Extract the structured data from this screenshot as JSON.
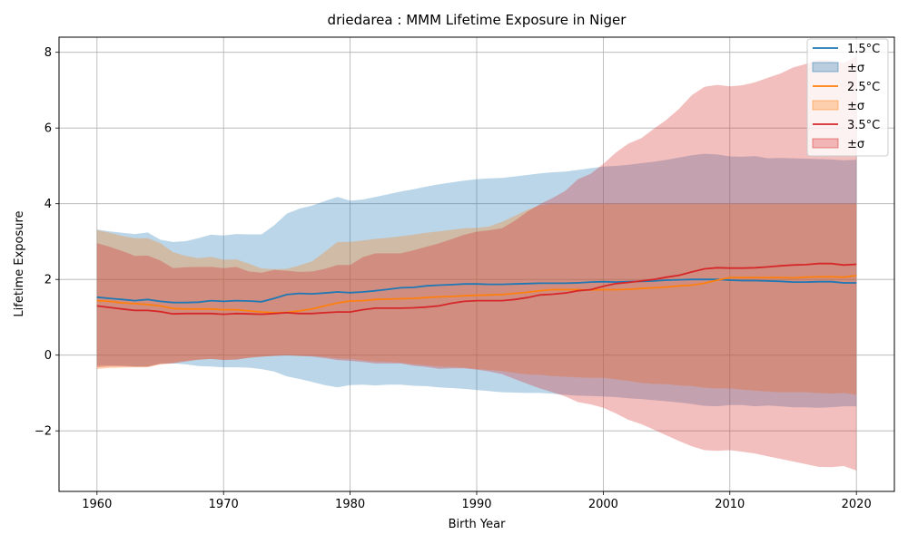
{
  "chart_data": {
    "type": "line",
    "title": "driedarea : MMM Lifetime Exposure in Niger",
    "xlabel": "Birth Year",
    "ylabel": "Lifetime Exposure",
    "xlim": [
      1957,
      2023
    ],
    "ylim": [
      -3.6,
      8.4
    ],
    "xticks": [
      1960,
      1970,
      1980,
      1990,
      2000,
      2010,
      2020
    ],
    "yticks": [
      -2,
      0,
      2,
      4,
      6,
      8
    ],
    "grid": true,
    "legend_position": "top-right",
    "legend": [
      "1.5°C",
      "±σ",
      "2.5°C",
      "±σ",
      "3.5°C",
      "±σ"
    ],
    "x": [
      1960,
      1961,
      1962,
      1963,
      1964,
      1965,
      1966,
      1967,
      1968,
      1969,
      1970,
      1971,
      1972,
      1973,
      1974,
      1975,
      1976,
      1977,
      1978,
      1979,
      1980,
      1981,
      1982,
      1983,
      1984,
      1985,
      1986,
      1987,
      1988,
      1989,
      1990,
      1991,
      1992,
      1993,
      1994,
      1995,
      1996,
      1997,
      1998,
      1999,
      2000,
      2001,
      2002,
      2003,
      2004,
      2005,
      2006,
      2007,
      2008,
      2009,
      2010,
      2011,
      2012,
      2013,
      2014,
      2015,
      2016,
      2017,
      2018,
      2019,
      2020
    ],
    "series": [
      {
        "name": "1.5°C",
        "color": "#1f77b4",
        "band_color": "#1f77b4",
        "mean": [
          1.53,
          1.5,
          1.47,
          1.44,
          1.47,
          1.42,
          1.39,
          1.39,
          1.4,
          1.44,
          1.42,
          1.44,
          1.43,
          1.41,
          1.5,
          1.6,
          1.63,
          1.62,
          1.64,
          1.67,
          1.65,
          1.67,
          1.7,
          1.74,
          1.78,
          1.79,
          1.83,
          1.85,
          1.86,
          1.88,
          1.88,
          1.87,
          1.87,
          1.88,
          1.89,
          1.9,
          1.9,
          1.9,
          1.91,
          1.93,
          1.94,
          1.93,
          1.94,
          1.95,
          1.96,
          1.98,
          1.99,
          2.0,
          2.0,
          2.0,
          1.98,
          1.97,
          1.97,
          1.96,
          1.95,
          1.93,
          1.93,
          1.94,
          1.94,
          1.91,
          1.91
        ],
        "upper": [
          3.32,
          3.27,
          3.23,
          3.2,
          3.24,
          3.05,
          2.99,
          3.01,
          3.09,
          3.18,
          3.16,
          3.2,
          3.19,
          3.19,
          3.43,
          3.74,
          3.87,
          3.95,
          4.07,
          4.18,
          4.08,
          4.11,
          4.18,
          4.25,
          4.32,
          4.38,
          4.45,
          4.51,
          4.56,
          4.61,
          4.65,
          4.67,
          4.68,
          4.72,
          4.76,
          4.8,
          4.83,
          4.85,
          4.89,
          4.94,
          4.98,
          5.0,
          5.03,
          5.07,
          5.11,
          5.16,
          5.22,
          5.28,
          5.32,
          5.3,
          5.25,
          5.24,
          5.26,
          5.2,
          5.21,
          5.2,
          5.19,
          5.18,
          5.17,
          5.15,
          5.16
        ],
        "lower": [
          -0.28,
          -0.27,
          -0.28,
          -0.3,
          -0.3,
          -0.22,
          -0.22,
          -0.24,
          -0.29,
          -0.3,
          -0.32,
          -0.32,
          -0.33,
          -0.37,
          -0.43,
          -0.56,
          -0.63,
          -0.71,
          -0.79,
          -0.85,
          -0.79,
          -0.78,
          -0.8,
          -0.78,
          -0.78,
          -0.81,
          -0.82,
          -0.85,
          -0.87,
          -0.89,
          -0.92,
          -0.95,
          -0.98,
          -0.99,
          -1.0,
          -1.0,
          -1.02,
          -1.05,
          -1.07,
          -1.08,
          -1.09,
          -1.11,
          -1.14,
          -1.16,
          -1.19,
          -1.22,
          -1.25,
          -1.29,
          -1.34,
          -1.35,
          -1.32,
          -1.32,
          -1.35,
          -1.33,
          -1.35,
          -1.38,
          -1.38,
          -1.39,
          -1.38,
          -1.35,
          -1.35
        ]
      },
      {
        "name": "2.5°C",
        "color": "#ff7f0e",
        "band_color": "#ff7f0e",
        "mean": [
          1.44,
          1.42,
          1.38,
          1.36,
          1.34,
          1.3,
          1.23,
          1.22,
          1.22,
          1.22,
          1.2,
          1.2,
          1.17,
          1.14,
          1.12,
          1.13,
          1.17,
          1.22,
          1.3,
          1.38,
          1.43,
          1.44,
          1.47,
          1.48,
          1.49,
          1.5,
          1.52,
          1.54,
          1.55,
          1.57,
          1.58,
          1.59,
          1.6,
          1.63,
          1.66,
          1.7,
          1.73,
          1.73,
          1.73,
          1.72,
          1.73,
          1.73,
          1.74,
          1.76,
          1.78,
          1.8,
          1.83,
          1.85,
          1.9,
          1.98,
          2.05,
          2.05,
          2.05,
          2.05,
          2.05,
          2.04,
          2.06,
          2.07,
          2.07,
          2.06,
          2.1
        ],
        "upper": [
          3.3,
          3.23,
          3.15,
          3.09,
          3.09,
          2.96,
          2.72,
          2.62,
          2.56,
          2.6,
          2.52,
          2.53,
          2.42,
          2.29,
          2.27,
          2.28,
          2.37,
          2.48,
          2.73,
          2.99,
          2.99,
          3.03,
          3.07,
          3.1,
          3.14,
          3.18,
          3.23,
          3.27,
          3.31,
          3.35,
          3.36,
          3.4,
          3.52,
          3.68,
          3.84,
          3.96,
          4.0,
          4.0,
          4.0,
          4.0,
          4.0,
          4.0,
          4.0,
          4.0,
          4.0,
          4.0,
          4.0,
          4.0,
          4.0,
          4.0,
          4.0,
          4.0,
          4.0,
          4.0,
          4.0,
          4.0,
          4.0,
          4.0,
          4.0,
          4.0,
          4.0
        ],
        "lower": [
          -0.37,
          -0.34,
          -0.33,
          -0.32,
          -0.32,
          -0.24,
          -0.2,
          -0.15,
          -0.12,
          -0.1,
          -0.12,
          -0.11,
          -0.07,
          -0.04,
          -0.02,
          0.0,
          -0.02,
          -0.02,
          -0.05,
          -0.09,
          -0.1,
          -0.14,
          -0.17,
          -0.18,
          -0.2,
          -0.24,
          -0.27,
          -0.3,
          -0.31,
          -0.33,
          -0.37,
          -0.39,
          -0.42,
          -0.47,
          -0.51,
          -0.52,
          -0.55,
          -0.57,
          -0.59,
          -0.6,
          -0.6,
          -0.64,
          -0.68,
          -0.73,
          -0.76,
          -0.77,
          -0.8,
          -0.82,
          -0.86,
          -0.88,
          -0.88,
          -0.91,
          -0.94,
          -0.96,
          -0.98,
          -0.98,
          -0.98,
          -1.0,
          -1.02,
          -1.0,
          -1.05
        ]
      },
      {
        "name": "3.5°C",
        "color": "#d62728",
        "band_color": "#d62728",
        "mean": [
          1.3,
          1.26,
          1.22,
          1.18,
          1.18,
          1.15,
          1.09,
          1.1,
          1.1,
          1.1,
          1.08,
          1.1,
          1.09,
          1.08,
          1.1,
          1.12,
          1.1,
          1.1,
          1.12,
          1.14,
          1.14,
          1.2,
          1.24,
          1.24,
          1.24,
          1.25,
          1.27,
          1.3,
          1.37,
          1.42,
          1.44,
          1.44,
          1.44,
          1.47,
          1.52,
          1.59,
          1.61,
          1.64,
          1.7,
          1.73,
          1.82,
          1.89,
          1.92,
          1.96,
          2.0,
          2.06,
          2.11,
          2.2,
          2.28,
          2.31,
          2.3,
          2.3,
          2.31,
          2.33,
          2.36,
          2.38,
          2.39,
          2.42,
          2.42,
          2.38,
          2.4
        ],
        "upper": [
          2.96,
          2.86,
          2.75,
          2.62,
          2.63,
          2.5,
          2.3,
          2.32,
          2.33,
          2.33,
          2.3,
          2.33,
          2.21,
          2.18,
          2.25,
          2.23,
          2.2,
          2.21,
          2.28,
          2.38,
          2.38,
          2.59,
          2.69,
          2.69,
          2.69,
          2.77,
          2.86,
          2.95,
          3.06,
          3.18,
          3.26,
          3.3,
          3.35,
          3.55,
          3.79,
          3.99,
          4.15,
          4.34,
          4.65,
          4.79,
          5.05,
          5.35,
          5.59,
          5.73,
          5.98,
          6.22,
          6.51,
          6.87,
          7.09,
          7.14,
          7.1,
          7.13,
          7.21,
          7.33,
          7.44,
          7.6,
          7.69,
          7.8,
          7.78,
          7.72,
          7.89
        ],
        "lower": [
          -0.32,
          -0.3,
          -0.3,
          -0.31,
          -0.31,
          -0.24,
          -0.22,
          -0.17,
          -0.12,
          -0.1,
          -0.13,
          -0.12,
          -0.07,
          -0.04,
          -0.02,
          0.0,
          -0.02,
          -0.04,
          -0.08,
          -0.13,
          -0.15,
          -0.18,
          -0.22,
          -0.22,
          -0.22,
          -0.28,
          -0.31,
          -0.36,
          -0.35,
          -0.35,
          -0.38,
          -0.43,
          -0.5,
          -0.63,
          -0.76,
          -0.88,
          -0.98,
          -1.09,
          -1.24,
          -1.3,
          -1.39,
          -1.54,
          -1.71,
          -1.82,
          -1.97,
          -2.12,
          -2.27,
          -2.41,
          -2.51,
          -2.53,
          -2.51,
          -2.55,
          -2.6,
          -2.67,
          -2.74,
          -2.81,
          -2.88,
          -2.95,
          -2.96,
          -2.93,
          -3.05
        ]
      }
    ]
  }
}
